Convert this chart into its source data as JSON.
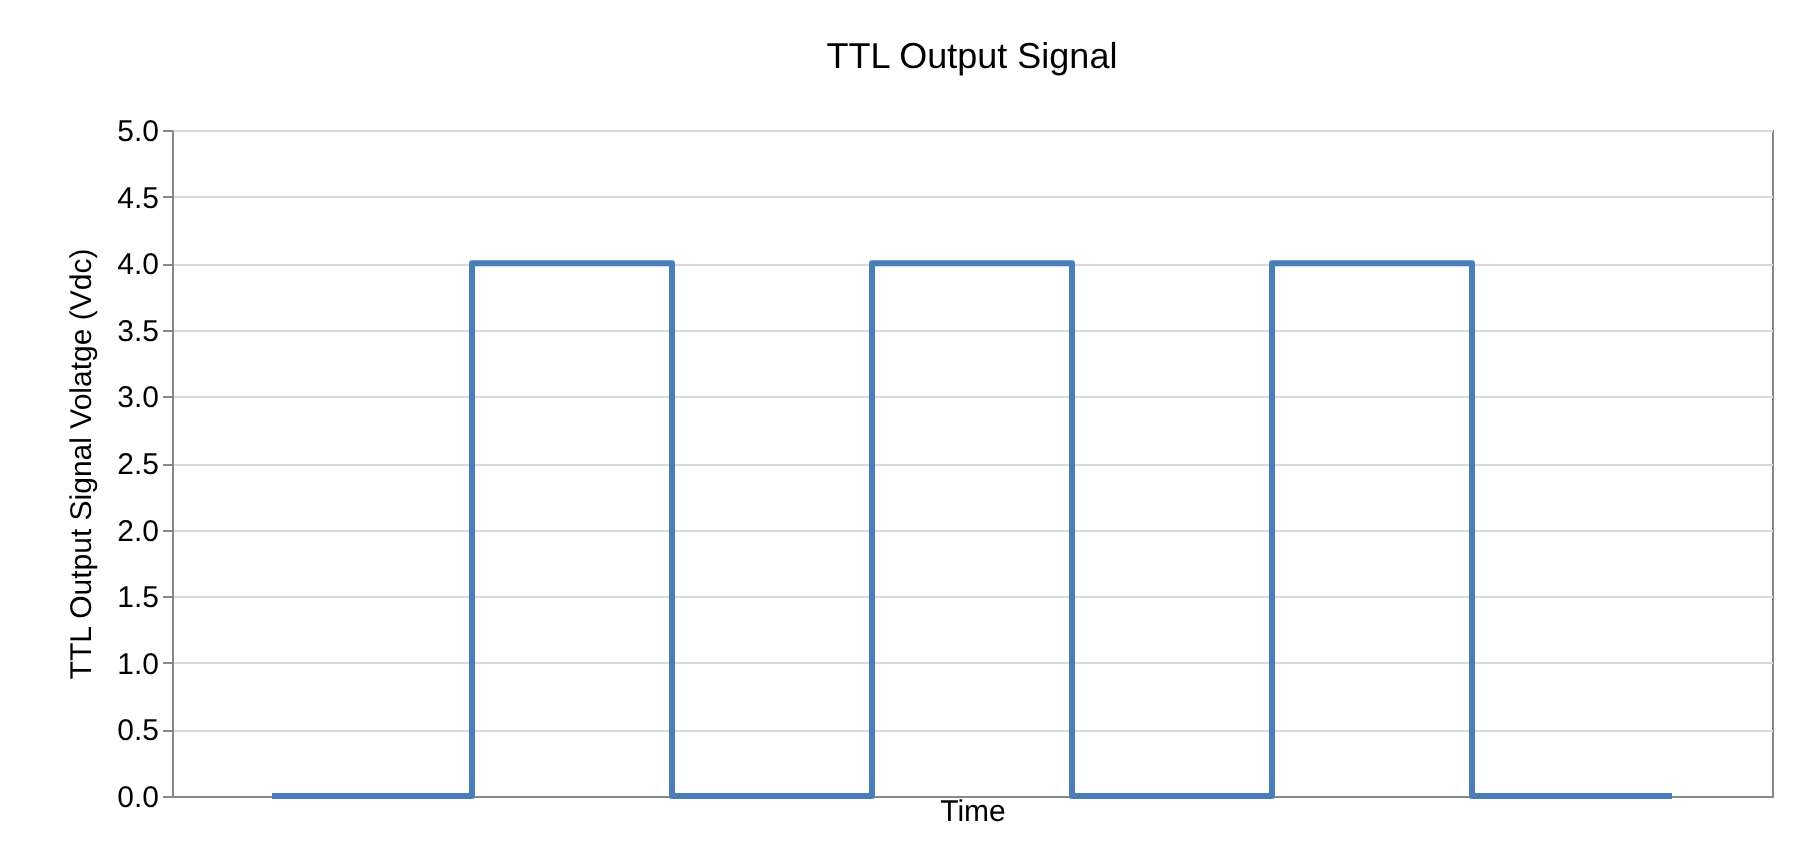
{
  "chart_data": {
    "type": "step",
    "title": "TTL Output Signal",
    "xlabel": "Time",
    "ylabel": "TTL Output Signal Volatge (Vdc)",
    "categories": [
      null,
      null,
      null,
      null,
      null,
      null,
      null,
      null
    ],
    "series": [
      {
        "color": "#4a7ebb",
        "values": [
          0,
          4,
          0,
          4,
          0,
          4,
          0,
          0
        ]
      }
    ],
    "ylim": [
      0,
      5
    ],
    "yticks": [
      {
        "value": 0,
        "label": "0.0"
      },
      0.5,
      {
        "value": 1,
        "label": "1.0"
      },
      1.5,
      {
        "value": 2,
        "label": "2.0"
      },
      2.5,
      {
        "value": 3,
        "label": "3.0"
      },
      3.5,
      {
        "value": 4,
        "label": "4.0"
      },
      4.5,
      {
        "value": 5,
        "label": "5.0"
      }
    ],
    "grid": "y",
    "tick_labels": "y",
    "marker": "none",
    "line_style": "solid"
  }
}
